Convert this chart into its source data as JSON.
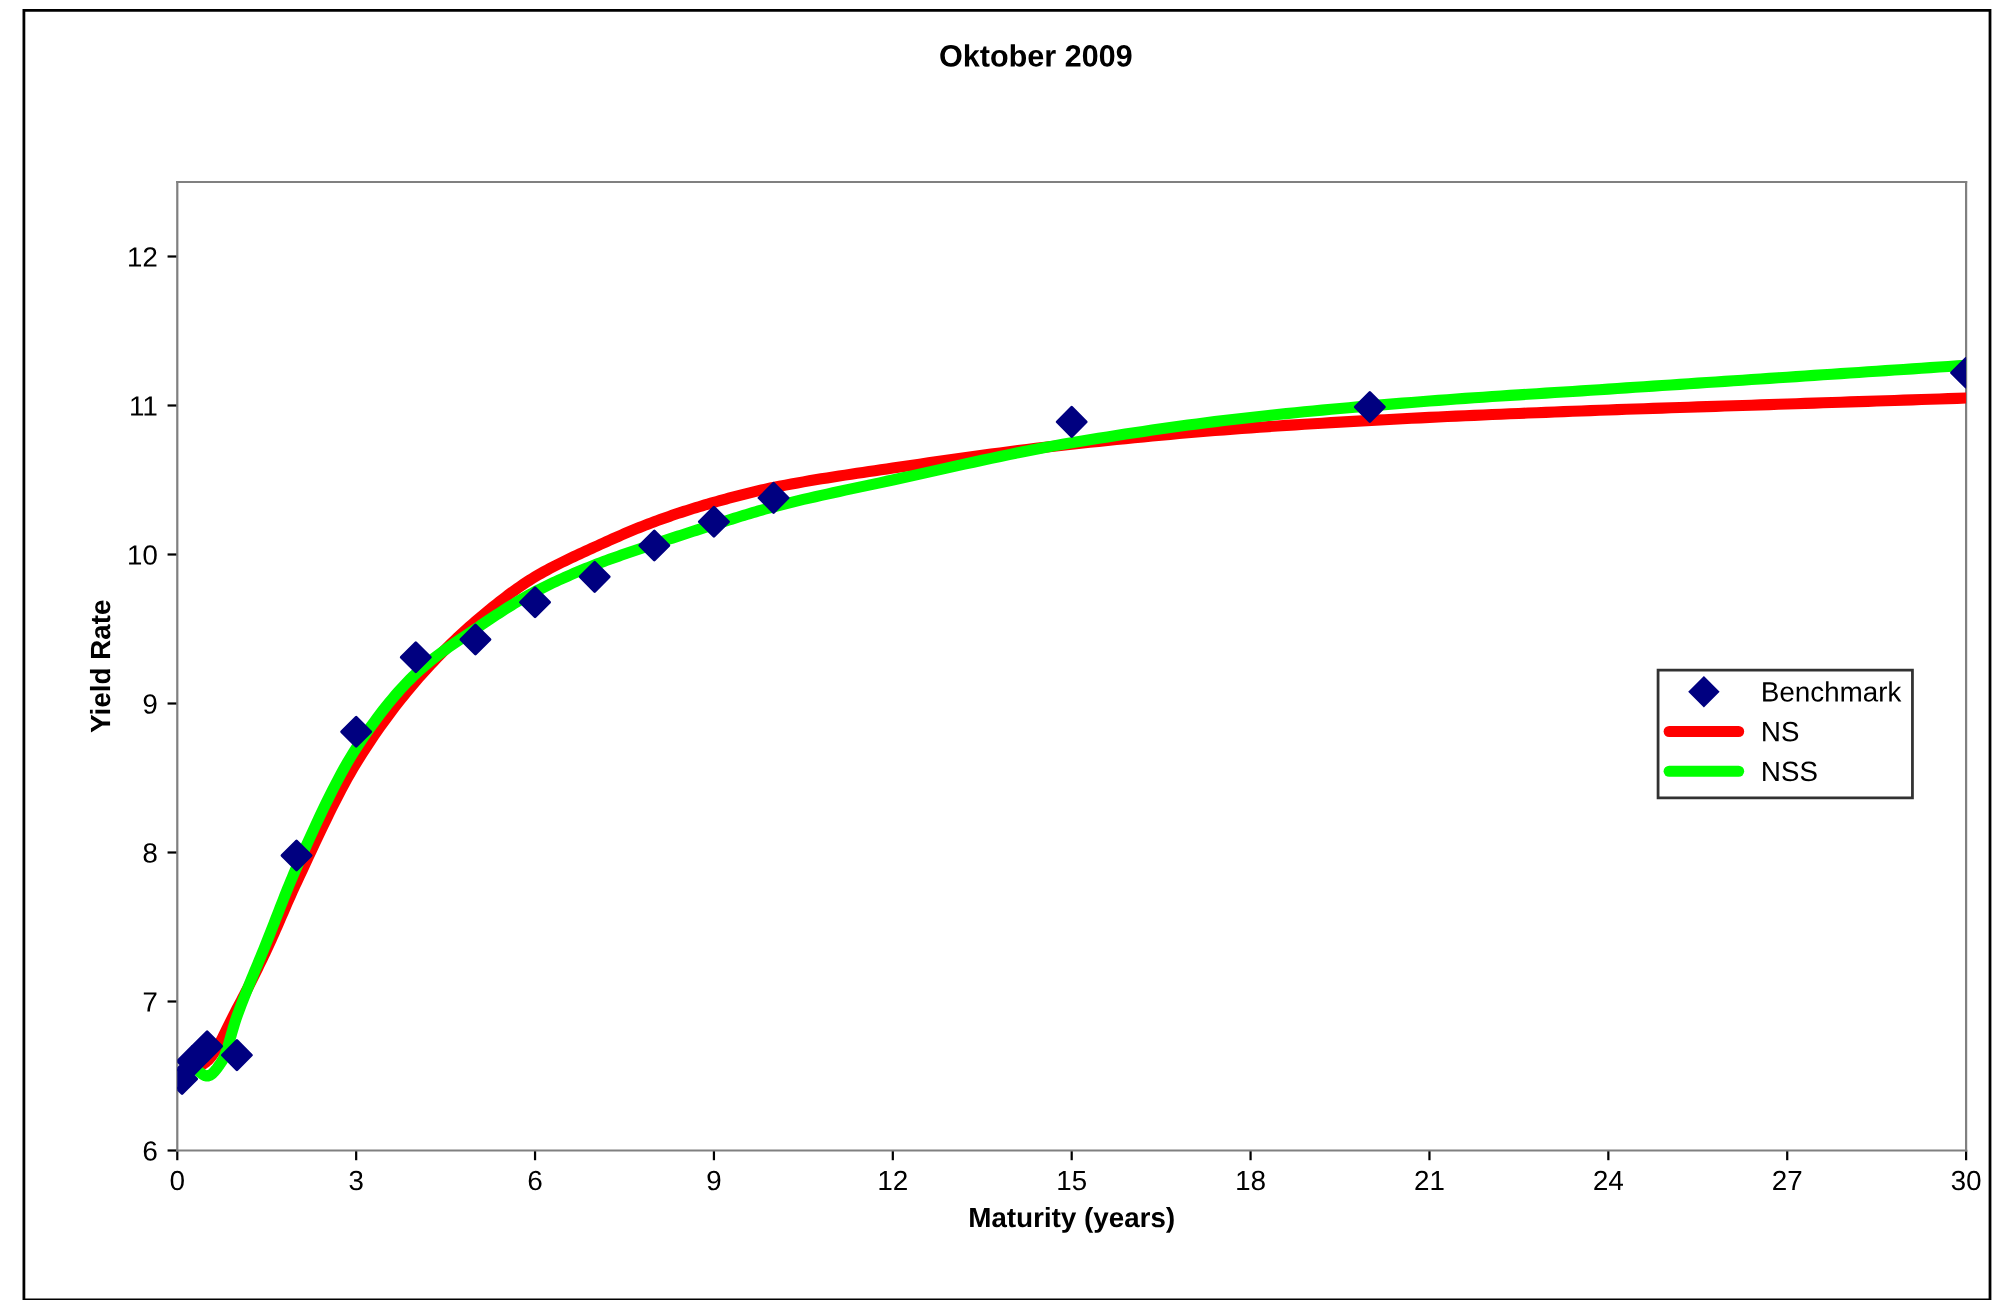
{
  "chart_data": {
    "type": "line",
    "title": "Oktober 2009",
    "xlabel": "Maturity (years)",
    "ylabel": "Yield Rate",
    "xlim": [
      0,
      30
    ],
    "xticks": [
      0,
      3,
      6,
      9,
      12,
      15,
      18,
      21,
      24,
      27,
      30
    ],
    "ylim": [
      6,
      12.5
    ],
    "yticks": [
      6,
      7,
      8,
      9,
      10,
      11,
      12
    ],
    "grid": false,
    "legend": "right",
    "series": [
      {
        "name": "Benchmark",
        "type": "scatter",
        "marker": "diamond",
        "color": "#000080",
        "x": [
          0.08,
          0.25,
          0.5,
          1,
          2,
          3,
          4,
          5,
          6,
          7,
          8,
          9,
          10,
          15,
          20,
          30
        ],
        "values": [
          6.48,
          6.6,
          6.7,
          6.64,
          7.98,
          8.81,
          9.31,
          9.43,
          9.68,
          9.85,
          10.06,
          10.22,
          10.38,
          10.89,
          10.99,
          11.22
        ]
      },
      {
        "name": "NS",
        "color": "#ff0000",
        "x": [
          0.3,
          0.5,
          1,
          1.5,
          2,
          3,
          4,
          5,
          6,
          7,
          8,
          9,
          10,
          12,
          15,
          18,
          21,
          24,
          27,
          30
        ],
        "values": [
          6.55,
          6.6,
          6.95,
          7.35,
          7.8,
          8.6,
          9.15,
          9.55,
          9.85,
          10.05,
          10.22,
          10.35,
          10.45,
          10.58,
          10.74,
          10.85,
          10.92,
          10.97,
          11.01,
          11.05
        ]
      },
      {
        "name": "NSS",
        "color": "#00ff00",
        "x": [
          0.3,
          0.5,
          0.75,
          1,
          1.5,
          2,
          3,
          4,
          5,
          6,
          7,
          8,
          9,
          10,
          12,
          15,
          18,
          21,
          24,
          27,
          30
        ],
        "values": [
          6.55,
          6.5,
          6.6,
          6.9,
          7.4,
          7.9,
          8.7,
          9.2,
          9.5,
          9.75,
          9.93,
          10.07,
          10.2,
          10.32,
          10.5,
          10.75,
          10.92,
          11.03,
          11.11,
          11.19,
          11.27
        ]
      }
    ]
  }
}
